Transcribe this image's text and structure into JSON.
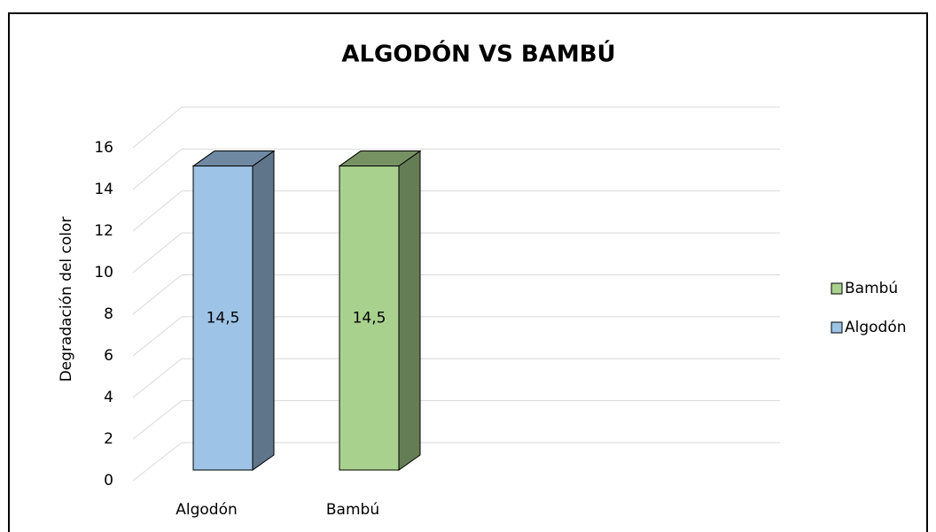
{
  "chart_data": {
    "type": "bar3d",
    "title": "ALGODÓN VS BAMBÚ",
    "y_label": "Degradación del color",
    "categories": [
      "Algodón",
      "Bambú"
    ],
    "series": [
      {
        "name": "Algodón",
        "color": "#9dc3e6",
        "values": [
          14.5,
          null
        ],
        "value_labels": [
          "14,5",
          null
        ]
      },
      {
        "name": "Bambú",
        "color": "#a9d18e",
        "values": [
          null,
          14.5
        ],
        "value_labels": [
          null,
          "14,5"
        ]
      }
    ],
    "ylim": [
      0,
      16
    ],
    "yticks": [
      0,
      2,
      4,
      6,
      8,
      10,
      12,
      14,
      16
    ],
    "grid": true,
    "legend": "right"
  }
}
